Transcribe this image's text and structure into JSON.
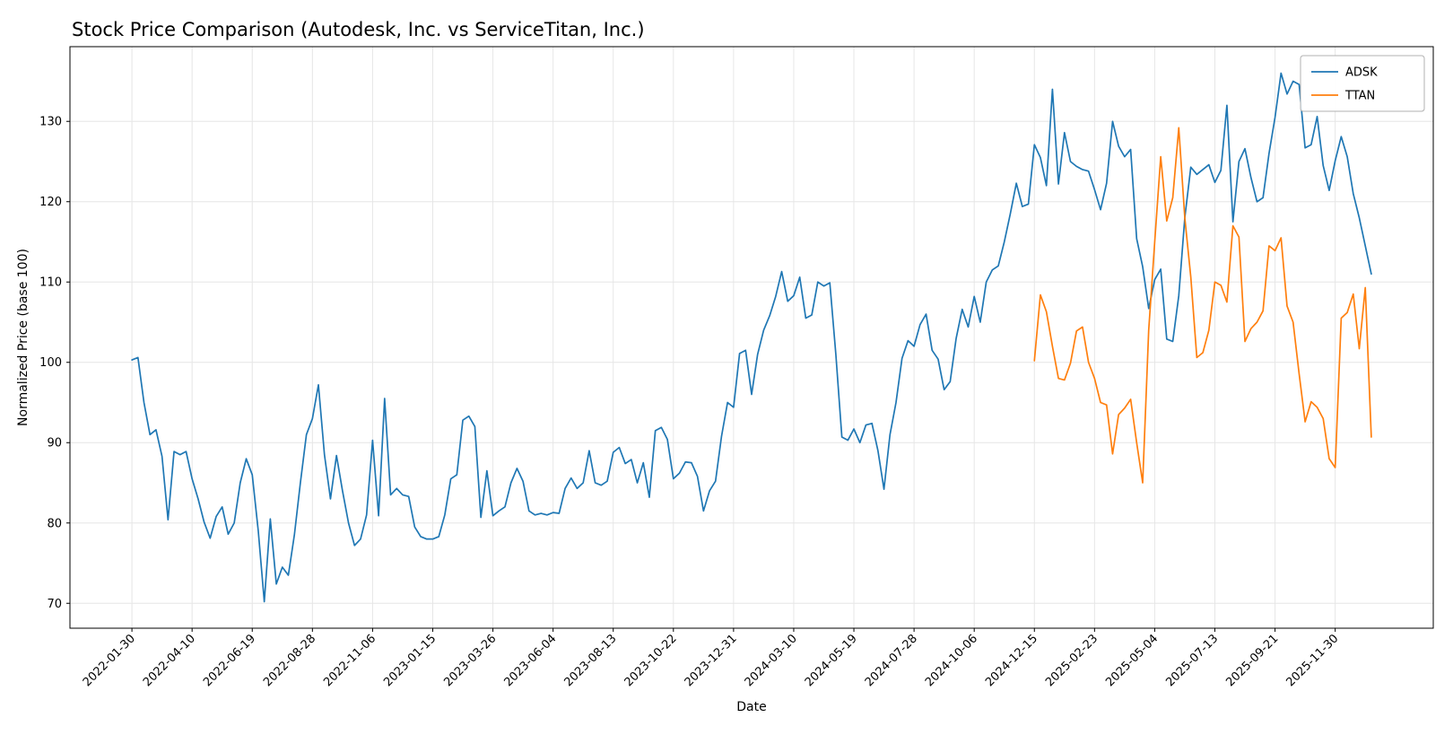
{
  "chart_data": {
    "type": "line",
    "title": "Stock Price Comparison (Autodesk, Inc. vs ServiceTitan, Inc.)",
    "xlabel": "Date",
    "ylabel": "Normalized Price (base 100)",
    "ylim": [
      66.9,
      139.3
    ],
    "yticks": [
      70,
      80,
      90,
      100,
      110,
      120,
      130
    ],
    "x_unit": "weeks",
    "x_tick_indices": [
      0,
      10,
      20,
      30,
      40,
      50,
      60,
      70,
      80,
      90,
      100,
      110,
      120,
      130,
      140,
      150,
      160,
      170,
      180,
      190,
      200
    ],
    "x_tick_labels": [
      "2022-01-30",
      "2022-04-10",
      "2022-06-19",
      "2022-08-28",
      "2022-11-06",
      "2023-01-15",
      "2023-03-26",
      "2023-06-04",
      "2023-08-13",
      "2023-10-22",
      "2023-12-31",
      "2024-03-10",
      "2024-05-19",
      "2024-07-28",
      "2024-10-06",
      "2024-12-15",
      "2025-02-23",
      "2025-05-04",
      "2025-07-13",
      "2025-09-21",
      "2025-11-30"
    ],
    "grid": true,
    "grid_color": "#e6e6e6",
    "frame_color": "#000000",
    "background_color": "#ffffff",
    "legend_position": "upper right",
    "legend_entries": [
      "ADSK",
      "TTAN"
    ],
    "series": [
      {
        "name": "ADSK",
        "color": "#1f77b4",
        "start_index": 0,
        "values": [
          100.3,
          100.6,
          95.0,
          91.0,
          91.6,
          88.3,
          80.4,
          88.9,
          88.5,
          88.9,
          85.5,
          83.0,
          80.1,
          78.1,
          80.8,
          82.0,
          78.6,
          80.0,
          85.0,
          88.0,
          86.0,
          79.0,
          70.2,
          80.5,
          72.4,
          74.5,
          73.5,
          78.5,
          85.0,
          91.0,
          93.0,
          97.2,
          88.5,
          83.0,
          88.4,
          84.0,
          80.0,
          77.2,
          78.0,
          81.0,
          90.3,
          80.9,
          95.5,
          83.5,
          84.3,
          83.5,
          83.3,
          79.5,
          78.3,
          78.0,
          78.0,
          78.3,
          81.0,
          85.5,
          86.0,
          92.8,
          93.3,
          92.0,
          80.7,
          86.5,
          80.9,
          81.5,
          82.0,
          85.0,
          86.8,
          85.2,
          81.5,
          81.0,
          81.2,
          81.0,
          81.3,
          81.2,
          84.3,
          85.6,
          84.3,
          85.0,
          89.0,
          85.0,
          84.7,
          85.2,
          88.8,
          89.4,
          87.4,
          87.9,
          85.0,
          87.5,
          83.2,
          91.5,
          91.9,
          90.4,
          85.5,
          86.2,
          87.6,
          87.5,
          85.8,
          81.5,
          84.0,
          85.2,
          90.8,
          95.0,
          94.4,
          101.1,
          101.5,
          96.0,
          101.0,
          104.0,
          105.8,
          108.2,
          111.3,
          107.6,
          108.3,
          110.6,
          105.5,
          105.9,
          110.0,
          109.5,
          109.9,
          101.0,
          90.7,
          90.3,
          91.7,
          90.0,
          92.2,
          92.4,
          89.0,
          84.2,
          91.0,
          95.0,
          100.5,
          102.7,
          102.0,
          104.7,
          106.0,
          101.5,
          100.4,
          96.6,
          97.6,
          103.0,
          106.6,
          104.4,
          108.2,
          105.0,
          110.0,
          111.5,
          112.0,
          115.0,
          118.5,
          122.3,
          119.4,
          119.7,
          127.1,
          125.5,
          122.0,
          134.0,
          122.2,
          128.6,
          125.0,
          124.4,
          124.0,
          123.8,
          121.5,
          119.0,
          122.3,
          130.0,
          126.9,
          125.6,
          126.5,
          115.4,
          111.9,
          106.7,
          110.3,
          111.6,
          102.9,
          102.6,
          108.3,
          118.0,
          124.3,
          123.4,
          124.0,
          124.6,
          122.4,
          123.9,
          132.0,
          117.5,
          125.0,
          126.6,
          123.0,
          120.0,
          120.5,
          126.0,
          130.5,
          136.0,
          133.4,
          135.0,
          134.6,
          126.7,
          127.1,
          130.6,
          124.5,
          121.4,
          125.1,
          128.1,
          125.6,
          121.0,
          118.0,
          114.5,
          111.0
        ]
      },
      {
        "name": "TTAN",
        "color": "#ff7f0e",
        "start_index": 150,
        "values": [
          100.2,
          108.4,
          106.3,
          102.0,
          98.0,
          97.8,
          99.9,
          103.9,
          104.4,
          100.0,
          98.0,
          95.0,
          94.7,
          88.6,
          93.5,
          94.3,
          95.4,
          90.0,
          85.0,
          104.0,
          115.0,
          125.6,
          117.6,
          120.5,
          129.2,
          118.0,
          110.6,
          100.6,
          101.2,
          104.0,
          110.0,
          109.6,
          107.5,
          117.0,
          115.6,
          102.6,
          104.2,
          105.0,
          106.4,
          114.5,
          113.9,
          115.5,
          107.0,
          105.0,
          98.6,
          92.6,
          95.1,
          94.4,
          93.0,
          88.0,
          86.9,
          105.5,
          106.2,
          108.5,
          101.7,
          109.3,
          90.7
        ]
      }
    ]
  }
}
